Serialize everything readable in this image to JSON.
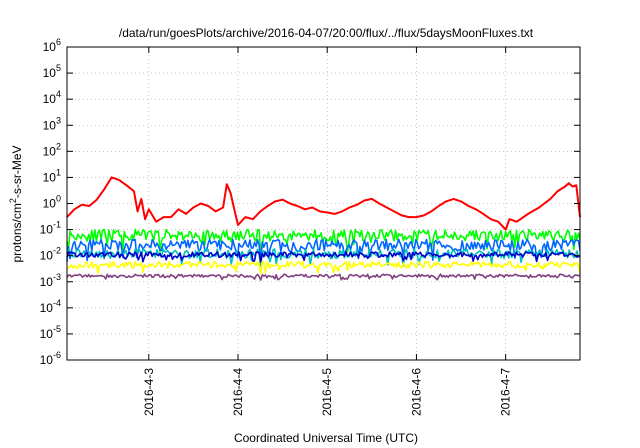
{
  "chart_data": {
    "type": "line",
    "title": "/data/run/goesPlots/archive/2016-04-07/20:00/flux/../flux/5daysMoonFluxes.txt",
    "xlabel": "Coordinated Universal Time (UTC)",
    "ylabel": "protons/cm²-s-sr-MeV",
    "ylabel_parts": [
      "protons/cm",
      "2",
      "-s-sr-MeV"
    ],
    "y_scale": "log",
    "ylim": [
      1e-06,
      1000000.0
    ],
    "y_ticks": [
      {
        "base": "10",
        "exp": "-6",
        "value": 1e-06
      },
      {
        "base": "10",
        "exp": "-5",
        "value": 1e-05
      },
      {
        "base": "10",
        "exp": "-4",
        "value": 0.0001
      },
      {
        "base": "10",
        "exp": "-3",
        "value": 0.001
      },
      {
        "base": "10",
        "exp": "-2",
        "value": 0.01
      },
      {
        "base": "10",
        "exp": "-1",
        "value": 0.1
      },
      {
        "base": "10",
        "exp": "0",
        "value": 1
      },
      {
        "base": "10",
        "exp": "1",
        "value": 10
      },
      {
        "base": "10",
        "exp": "2",
        "value": 100
      },
      {
        "base": "10",
        "exp": "3",
        "value": 1000
      },
      {
        "base": "10",
        "exp": "4",
        "value": 10000
      },
      {
        "base": "10",
        "exp": "5",
        "value": 100000
      },
      {
        "base": "10",
        "exp": "6",
        "value": 1000000
      }
    ],
    "xlim": [
      "2016-04-02T02:00",
      "2016-04-07T20:00"
    ],
    "x_ticks": [
      {
        "label": "2016-4-3",
        "value": "2016-04-03T00:00"
      },
      {
        "label": "2016-4-4",
        "value": "2016-04-04T00:00"
      },
      {
        "label": "2016-4-5",
        "value": "2016-04-05T00:00"
      },
      {
        "label": "2016-4-6",
        "value": "2016-04-06T00:00"
      },
      {
        "label": "2016-4-7",
        "value": "2016-04-07T00:00"
      }
    ],
    "grid": true,
    "legend": "none",
    "series": [
      {
        "color": "#ff0000",
        "points": [
          [
            "2016-04-02T02:00",
            0.3
          ],
          [
            "2016-04-02T04:00",
            0.6
          ],
          [
            "2016-04-02T06:00",
            0.9
          ],
          [
            "2016-04-02T08:00",
            0.8
          ],
          [
            "2016-04-02T10:00",
            1.4
          ],
          [
            "2016-04-02T12:00",
            3.5
          ],
          [
            "2016-04-02T14:00",
            10
          ],
          [
            "2016-04-02T16:00",
            8
          ],
          [
            "2016-04-02T18:00",
            5
          ],
          [
            "2016-04-02T20:00",
            3
          ],
          [
            "2016-04-02T21:00",
            0.5
          ],
          [
            "2016-04-02T22:00",
            1.5
          ],
          [
            "2016-04-02T23:00",
            0.25
          ],
          [
            "2016-04-03T00:00",
            0.6
          ],
          [
            "2016-04-03T02:00",
            0.2
          ],
          [
            "2016-04-03T04:00",
            0.3
          ],
          [
            "2016-04-03T06:00",
            0.3
          ],
          [
            "2016-04-03T08:00",
            0.6
          ],
          [
            "2016-04-03T10:00",
            0.4
          ],
          [
            "2016-04-03T12:00",
            0.7
          ],
          [
            "2016-04-03T14:00",
            1.0
          ],
          [
            "2016-04-03T16:00",
            0.8
          ],
          [
            "2016-04-03T18:00",
            0.5
          ],
          [
            "2016-04-03T20:00",
            0.7
          ],
          [
            "2016-04-03T21:00",
            5.5
          ],
          [
            "2016-04-03T22:00",
            2.5
          ],
          [
            "2016-04-03T23:00",
            0.6
          ],
          [
            "2016-04-04T00:00",
            0.15
          ],
          [
            "2016-04-04T02:00",
            0.3
          ],
          [
            "2016-04-04T04:00",
            0.25
          ],
          [
            "2016-04-04T06:00",
            0.5
          ],
          [
            "2016-04-04T08:00",
            0.8
          ],
          [
            "2016-04-04T10:00",
            1.2
          ],
          [
            "2016-04-04T12:00",
            1.4
          ],
          [
            "2016-04-04T14:00",
            1.0
          ],
          [
            "2016-04-04T16:00",
            0.8
          ],
          [
            "2016-04-04T18:00",
            0.6
          ],
          [
            "2016-04-04T20:00",
            0.7
          ],
          [
            "2016-04-04T22:00",
            0.5
          ],
          [
            "2016-04-05T00:00",
            0.45
          ],
          [
            "2016-04-05T02:00",
            0.4
          ],
          [
            "2016-04-05T04:00",
            0.5
          ],
          [
            "2016-04-05T06:00",
            0.7
          ],
          [
            "2016-04-05T08:00",
            0.9
          ],
          [
            "2016-04-05T10:00",
            1.3
          ],
          [
            "2016-04-05T12:00",
            1.5
          ],
          [
            "2016-04-05T14:00",
            1.0
          ],
          [
            "2016-04-05T16:00",
            0.7
          ],
          [
            "2016-04-05T18:00",
            0.5
          ],
          [
            "2016-04-05T20:00",
            0.35
          ],
          [
            "2016-04-05T22:00",
            0.3
          ],
          [
            "2016-04-06T00:00",
            0.3
          ],
          [
            "2016-04-06T02:00",
            0.35
          ],
          [
            "2016-04-06T04:00",
            0.5
          ],
          [
            "2016-04-06T06:00",
            0.8
          ],
          [
            "2016-04-06T08:00",
            1.2
          ],
          [
            "2016-04-06T10:00",
            1.5
          ],
          [
            "2016-04-06T12:00",
            1.2
          ],
          [
            "2016-04-06T14:00",
            0.8
          ],
          [
            "2016-04-06T16:00",
            0.6
          ],
          [
            "2016-04-06T18:00",
            0.4
          ],
          [
            "2016-04-06T20:00",
            0.25
          ],
          [
            "2016-04-06T22:00",
            0.2
          ],
          [
            "2016-04-07T00:00",
            0.1
          ],
          [
            "2016-04-07T01:00",
            0.25
          ],
          [
            "2016-04-07T03:00",
            0.2
          ],
          [
            "2016-04-07T06:00",
            0.4
          ],
          [
            "2016-04-07T09:00",
            0.7
          ],
          [
            "2016-04-07T12:00",
            1.5
          ],
          [
            "2016-04-07T14:00",
            3.0
          ],
          [
            "2016-04-07T16:00",
            4.5
          ],
          [
            "2016-04-07T17:00",
            6
          ],
          [
            "2016-04-07T18:00",
            4.5
          ],
          [
            "2016-04-07T19:00",
            5
          ],
          [
            "2016-04-07T20:00",
            0.3
          ]
        ]
      },
      {
        "color": "#00ff00",
        "level": 0.06,
        "spread": 0.45,
        "seed": 11
      },
      {
        "color": "#0066ff",
        "level": 0.025,
        "spread": 0.45,
        "seed": 23
      },
      {
        "color": "#00c0c0",
        "level": 0.012,
        "spread": 0.35,
        "seed": 37
      },
      {
        "color": "#0000cc",
        "level": 0.011,
        "spread": 0.2,
        "seed": 41
      },
      {
        "color": "#ffff00",
        "level": 0.0045,
        "spread": 0.25,
        "seed": 53
      },
      {
        "color": "#804080",
        "level": 0.0017,
        "spread": 0.12,
        "seed": 67
      }
    ]
  }
}
